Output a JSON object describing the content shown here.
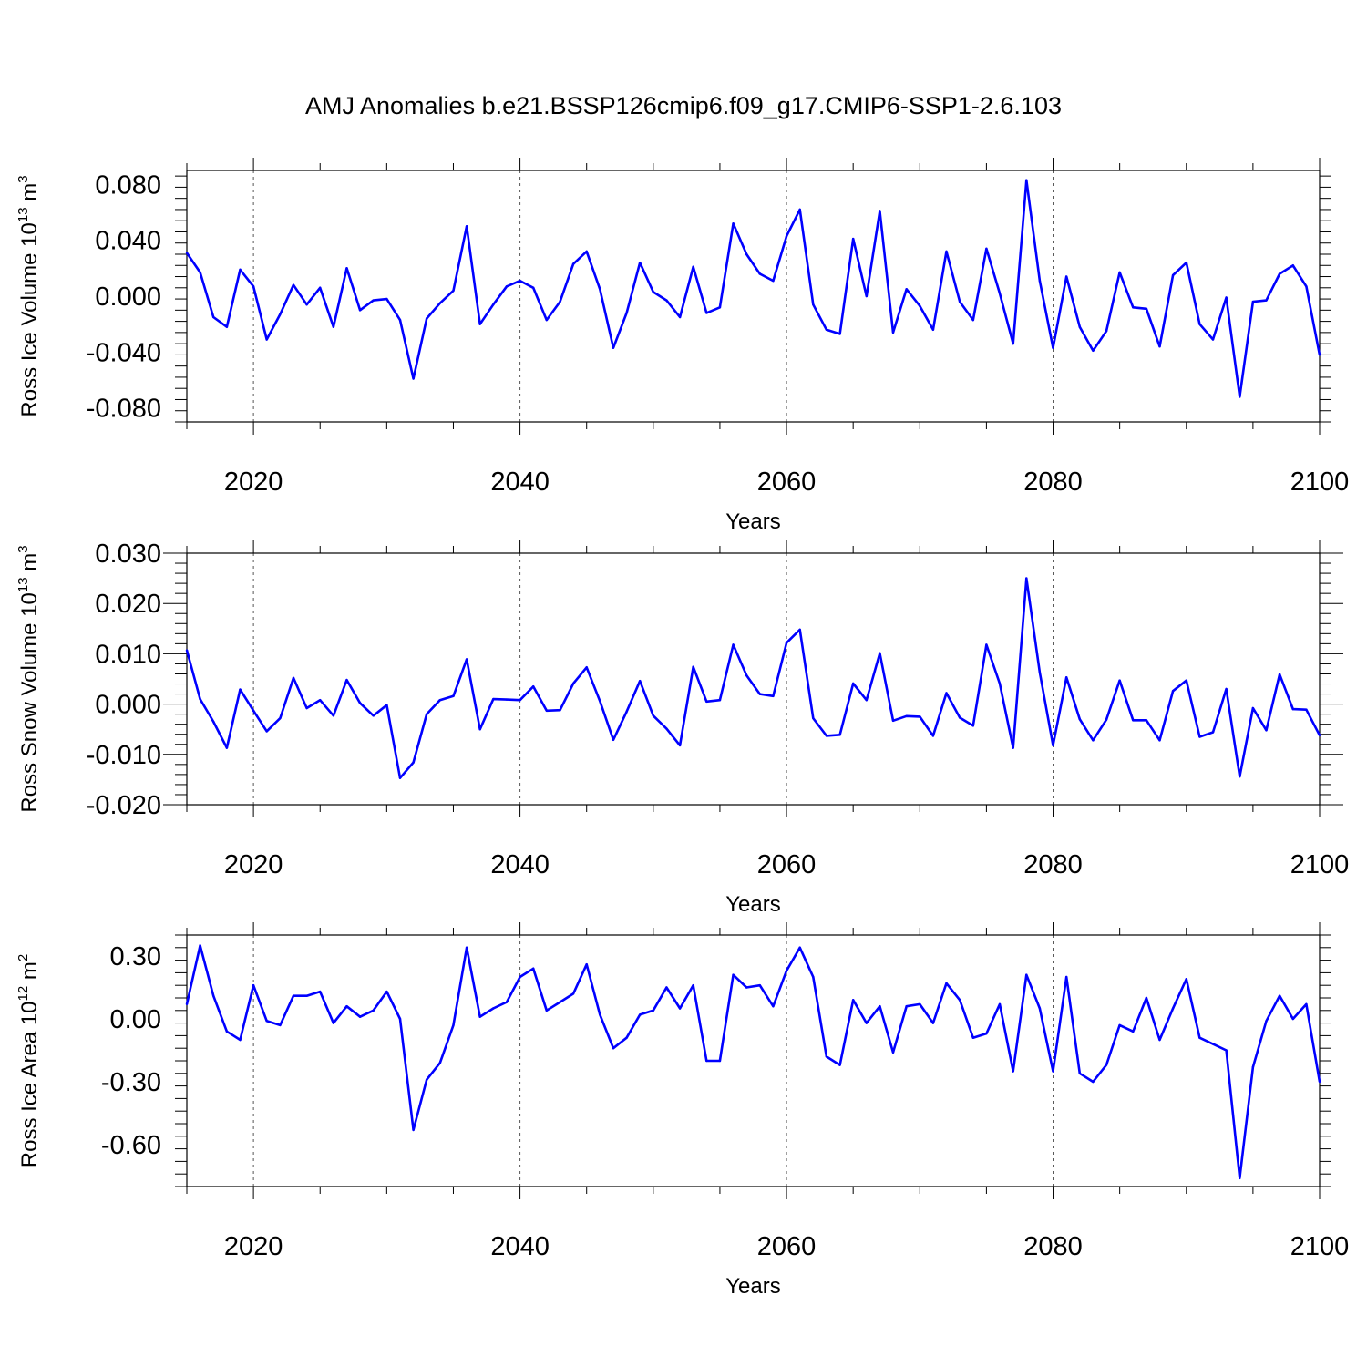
{
  "figure_title": "AMJ Anomalies b.e21.BSSP126cmip6.f09_g17.CMIP6-SSP1-2.6.103",
  "colors": {
    "line": "#0000ff",
    "axes": "#000000",
    "grid": "#555555"
  },
  "chart_data": [
    {
      "type": "line",
      "xlabel": "Years",
      "ylabel": {
        "text": "Ross Ice Volume 10",
        "exp": "13",
        "unit": " m",
        "unit_exp": "3"
      },
      "x_range": [
        2015,
        2100
      ],
      "ylim": [
        -0.09,
        0.09
      ],
      "x_ticks": [
        "2020",
        "2040",
        "2060",
        "2080",
        "2100"
      ],
      "y_ticks": [
        {
          "value": 0.08,
          "label": "0.080"
        },
        {
          "value": 0.04,
          "label": "0.040"
        },
        {
          "value": 0.0,
          "label": "0.000"
        },
        {
          "value": -0.04,
          "label": "-0.040"
        },
        {
          "value": -0.08,
          "label": "-0.080"
        }
      ],
      "grid_x": [
        2020,
        2040,
        2060,
        2080
      ],
      "x": [
        2015,
        2016,
        2017,
        2018,
        2019,
        2020,
        2021,
        2022,
        2023,
        2024,
        2025,
        2026,
        2027,
        2028,
        2029,
        2030,
        2031,
        2032,
        2033,
        2034,
        2035,
        2036,
        2037,
        2038,
        2039,
        2040,
        2041,
        2042,
        2043,
        2044,
        2045,
        2046,
        2047,
        2048,
        2049,
        2050,
        2051,
        2052,
        2053,
        2054,
        2055,
        2056,
        2057,
        2058,
        2059,
        2060,
        2061,
        2062,
        2063,
        2064,
        2065,
        2066,
        2067,
        2068,
        2069,
        2070,
        2071,
        2072,
        2073,
        2074,
        2075,
        2076,
        2077,
        2078,
        2079,
        2080,
        2081,
        2082,
        2083,
        2084,
        2085,
        2086,
        2087,
        2088,
        2089,
        2090,
        2091,
        2092,
        2093,
        2094,
        2095,
        2096,
        2097,
        2098,
        2099,
        2100
      ],
      "values": [
        0.031,
        0.017,
        -0.015,
        -0.022,
        0.019,
        0.007,
        -0.031,
        -0.013,
        0.008,
        -0.006,
        0.006,
        -0.022,
        0.02,
        -0.01,
        -0.003,
        -0.002,
        -0.017,
        -0.059,
        -0.016,
        -0.005,
        0.004,
        0.05,
        -0.02,
        -0.006,
        0.007,
        0.011,
        0.006,
        -0.017,
        -0.004,
        0.023,
        0.032,
        0.005,
        -0.037,
        -0.012,
        0.024,
        0.003,
        -0.003,
        -0.015,
        0.021,
        -0.012,
        -0.008,
        0.052,
        0.03,
        0.016,
        0.011,
        0.043,
        0.062,
        -0.006,
        -0.024,
        -0.027,
        0.041,
        0.0,
        0.061,
        -0.026,
        0.005,
        -0.007,
        -0.024,
        0.032,
        -0.004,
        -0.017,
        0.034,
        0.002,
        -0.034,
        0.083,
        0.011,
        -0.037,
        0.014,
        -0.022,
        -0.039,
        -0.025,
        0.017,
        -0.008,
        -0.009,
        -0.036,
        0.015,
        0.024,
        -0.02,
        -0.031,
        -0.001,
        -0.072,
        -0.004,
        -0.003,
        0.016,
        0.022,
        0.007,
        -0.042
      ]
    },
    {
      "type": "line",
      "xlabel": "Years",
      "ylabel": {
        "text": "Ross Snow Volume 10",
        "exp": "13",
        "unit": " m",
        "unit_exp": "3"
      },
      "x_range": [
        2015,
        2100
      ],
      "ylim": [
        -0.02,
        0.03
      ],
      "x_ticks": [
        "2020",
        "2040",
        "2060",
        "2080",
        "2100"
      ],
      "y_ticks": [
        {
          "value": 0.03,
          "label": "0.030"
        },
        {
          "value": 0.02,
          "label": "0.020"
        },
        {
          "value": 0.01,
          "label": "0.010"
        },
        {
          "value": 0.0,
          "label": "0.000"
        },
        {
          "value": -0.01,
          "label": "-0.010"
        },
        {
          "value": -0.02,
          "label": "-0.020"
        }
      ],
      "grid_x": [
        2020,
        2040,
        2060,
        2080
      ],
      "x": [
        2015,
        2016,
        2017,
        2018,
        2019,
        2020,
        2021,
        2022,
        2023,
        2024,
        2025,
        2026,
        2027,
        2028,
        2029,
        2030,
        2031,
        2032,
        2033,
        2034,
        2035,
        2036,
        2037,
        2038,
        2039,
        2040,
        2041,
        2042,
        2043,
        2044,
        2045,
        2046,
        2047,
        2048,
        2049,
        2050,
        2051,
        2052,
        2053,
        2054,
        2055,
        2056,
        2057,
        2058,
        2059,
        2060,
        2061,
        2062,
        2063,
        2064,
        2065,
        2066,
        2067,
        2068,
        2069,
        2070,
        2071,
        2072,
        2073,
        2074,
        2075,
        2076,
        2077,
        2078,
        2079,
        2080,
        2081,
        2082,
        2083,
        2084,
        2085,
        2086,
        2087,
        2088,
        2089,
        2090,
        2091,
        2092,
        2093,
        2094,
        2095,
        2096,
        2097,
        2098,
        2099,
        2100
      ],
      "values": [
        0.0107,
        0.001,
        -0.0035,
        -0.0087,
        0.0029,
        -0.0013,
        -0.0054,
        -0.0028,
        0.0052,
        -0.0008,
        0.0008,
        -0.0023,
        0.0048,
        0.0002,
        -0.0023,
        -0.0002,
        -0.0147,
        -0.0116,
        -0.002,
        0.0008,
        0.0016,
        0.0089,
        -0.005,
        0.001,
        0.0009,
        0.0008,
        0.0035,
        -0.0013,
        -0.0012,
        0.0041,
        0.0073,
        0.0006,
        -0.0071,
        -0.0015,
        0.0046,
        -0.0023,
        -0.0049,
        -0.0082,
        0.0074,
        0.0005,
        0.0008,
        0.0118,
        0.0057,
        0.002,
        0.0016,
        0.0122,
        0.0148,
        -0.0028,
        -0.0063,
        -0.0061,
        0.0041,
        0.0008,
        0.0101,
        -0.0033,
        -0.0024,
        -0.0025,
        -0.0063,
        0.0022,
        -0.0027,
        -0.0043,
        0.0118,
        0.0041,
        -0.0087,
        0.025,
        0.0063,
        -0.0082,
        0.0053,
        -0.003,
        -0.0072,
        -0.0031,
        0.0047,
        -0.0032,
        -0.0032,
        -0.0072,
        0.0026,
        0.0047,
        -0.0065,
        -0.0056,
        0.003,
        -0.0144,
        -0.0008,
        -0.0052,
        0.0059,
        -0.001,
        -0.0011,
        -0.0062
      ]
    },
    {
      "type": "line",
      "xlabel": "Years",
      "ylabel": {
        "text": "Ross Ice Area 10",
        "exp": "12",
        "unit": " m",
        "unit_exp": "2"
      },
      "x_range": [
        2015,
        2100
      ],
      "ylim": [
        -0.8,
        0.4
      ],
      "x_ticks": [
        "2020",
        "2040",
        "2060",
        "2080",
        "2100"
      ],
      "y_ticks": [
        {
          "value": 0.3,
          "label": "0.30"
        },
        {
          "value": 0.0,
          "label": "0.00"
        },
        {
          "value": -0.3,
          "label": "-0.30"
        },
        {
          "value": -0.6,
          "label": "-0.60"
        }
      ],
      "grid_x": [
        2020,
        2040,
        2060,
        2080
      ],
      "x": [
        2015,
        2016,
        2017,
        2018,
        2019,
        2020,
        2021,
        2022,
        2023,
        2024,
        2025,
        2026,
        2027,
        2028,
        2029,
        2030,
        2031,
        2032,
        2033,
        2034,
        2035,
        2036,
        2037,
        2038,
        2039,
        2040,
        2041,
        2042,
        2043,
        2044,
        2045,
        2046,
        2047,
        2048,
        2049,
        2050,
        2051,
        2052,
        2053,
        2054,
        2055,
        2056,
        2057,
        2058,
        2059,
        2060,
        2061,
        2062,
        2063,
        2064,
        2065,
        2066,
        2067,
        2068,
        2069,
        2070,
        2071,
        2072,
        2073,
        2074,
        2075,
        2076,
        2077,
        2078,
        2079,
        2080,
        2081,
        2082,
        2083,
        2084,
        2085,
        2086,
        2087,
        2088,
        2089,
        2090,
        2091,
        2092,
        2093,
        2094,
        2095,
        2096,
        2097,
        2098,
        2099,
        2100
      ],
      "values": [
        0.07,
        0.35,
        0.11,
        -0.06,
        -0.1,
        0.16,
        -0.01,
        -0.03,
        0.11,
        0.11,
        0.13,
        -0.02,
        0.06,
        0.01,
        0.04,
        0.13,
        0.0,
        -0.53,
        -0.29,
        -0.21,
        -0.03,
        0.34,
        0.01,
        0.05,
        0.08,
        0.2,
        0.24,
        0.04,
        0.08,
        0.12,
        0.26,
        0.02,
        -0.14,
        -0.09,
        0.02,
        0.04,
        0.15,
        0.05,
        0.16,
        -0.2,
        -0.2,
        0.21,
        0.15,
        0.16,
        0.06,
        0.23,
        0.34,
        0.2,
        -0.18,
        -0.22,
        0.09,
        -0.02,
        0.06,
        -0.16,
        0.06,
        0.07,
        -0.02,
        0.17,
        0.09,
        -0.09,
        -0.07,
        0.07,
        -0.25,
        0.21,
        0.05,
        -0.25,
        0.2,
        -0.26,
        -0.3,
        -0.22,
        -0.03,
        -0.06,
        0.1,
        -0.1,
        0.05,
        0.19,
        -0.09,
        -0.12,
        -0.15,
        -0.76,
        -0.23,
        -0.01,
        0.11,
        0.0,
        0.07,
        -0.3
      ]
    }
  ]
}
